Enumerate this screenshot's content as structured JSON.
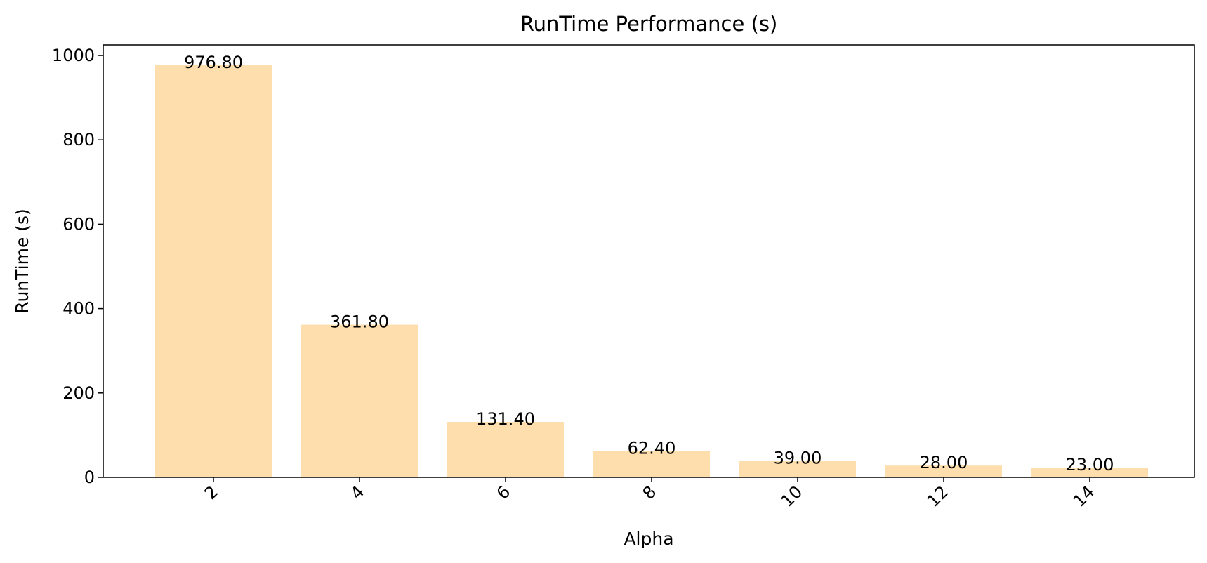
{
  "chart_data": {
    "type": "bar",
    "title": "RunTime Performance (s)",
    "xlabel": "Alpha",
    "ylabel": "RunTime (s)",
    "categories": [
      "2",
      "4",
      "6",
      "8",
      "10",
      "12",
      "14"
    ],
    "values": [
      976.8,
      361.8,
      131.4,
      62.4,
      39.0,
      28.0,
      23.0
    ],
    "value_labels": [
      "976.80",
      "361.80",
      "131.40",
      "62.40",
      "39.00",
      "28.00",
      "23.00"
    ],
    "yticks": [
      0,
      200,
      400,
      600,
      800,
      1000
    ],
    "ylim": [
      0,
      1025
    ],
    "bar_color": "#fddeac",
    "grid": false,
    "legend": "none",
    "xtick_rotation": 45
  }
}
